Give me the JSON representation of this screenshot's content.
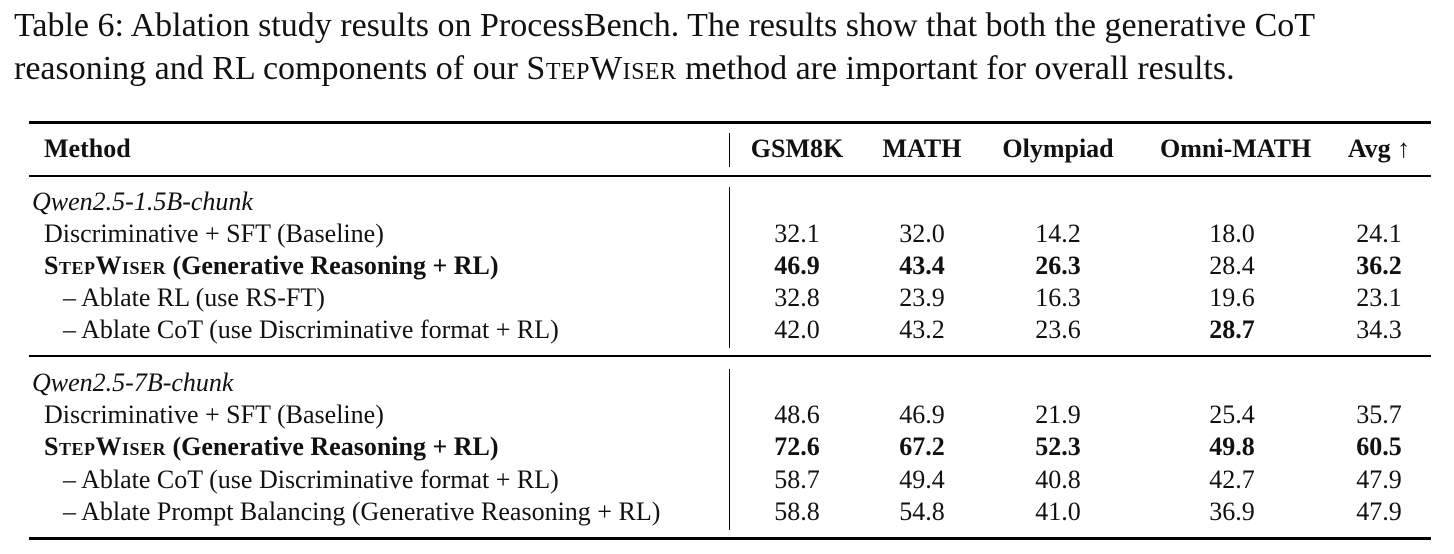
{
  "caption": {
    "line1": "Table 6: Ablation study results on ProcessBench. The results show that both the generative CoT",
    "line2_prefix": "reasoning and RL components of our ",
    "line2_method": "StepWiser",
    "line2_suffix": " method are important for overall results."
  },
  "table": {
    "headers": {
      "method": "Method",
      "gsm8k": "GSM8K",
      "math": "MATH",
      "olympiad": "Olympiad",
      "omni": "Omni-MATH",
      "avg": "Avg ↑"
    },
    "groups": [
      {
        "name": "Qwen2.5-1.5B-chunk",
        "rows": [
          {
            "method": "Discriminative + SFT (Baseline)",
            "gsm8k": "32.1",
            "math": "32.0",
            "olympiad": "14.2",
            "omni": "18.0",
            "avg": "24.1"
          },
          {
            "method_sc": "StepWiser",
            "method_rest": " (Generative Reasoning + RL)",
            "gsm8k": "46.9",
            "math": "43.4",
            "olympiad": "26.3",
            "omni": "28.4",
            "avg": "36.2"
          },
          {
            "method": "– Ablate RL (use RS-FT)",
            "gsm8k": "32.8",
            "math": "23.9",
            "olympiad": "16.3",
            "omni": "19.6",
            "avg": "23.1"
          },
          {
            "method": "– Ablate CoT (use Discriminative format + RL)",
            "gsm8k": "42.0",
            "math": "43.2",
            "olympiad": "23.6",
            "omni": "28.7",
            "avg": "34.3"
          }
        ]
      },
      {
        "name": "Qwen2.5-7B-chunk",
        "rows": [
          {
            "method": "Discriminative + SFT (Baseline)",
            "gsm8k": "48.6",
            "math": "46.9",
            "olympiad": "21.9",
            "omni": "25.4",
            "avg": "35.7"
          },
          {
            "method_sc": "StepWiser",
            "method_rest": " (Generative Reasoning + RL)",
            "gsm8k": "72.6",
            "math": "67.2",
            "olympiad": "52.3",
            "omni": "49.8",
            "avg": "60.5"
          },
          {
            "method": "– Ablate CoT (use Discriminative format + RL)",
            "gsm8k": "58.7",
            "math": "49.4",
            "olympiad": "40.8",
            "omni": "42.7",
            "avg": "47.9"
          },
          {
            "method": "– Ablate Prompt Balancing (Generative Reasoning + RL)",
            "gsm8k": "58.8",
            "math": "54.8",
            "olympiad": "41.0",
            "omni": "36.9",
            "avg": "47.9"
          }
        ]
      }
    ]
  }
}
